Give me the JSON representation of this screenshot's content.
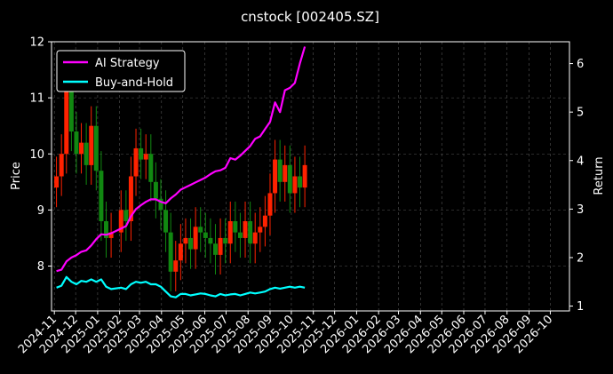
{
  "chart_data": {
    "type": "line",
    "title": "cnstock [002405.SZ]",
    "ylabel_left": "Price",
    "ylabel_right": "Return",
    "ylim_left": [
      7.2,
      12.0
    ],
    "ylim_right": [
      0.9,
      6.45
    ],
    "yticks_left": [
      "8",
      "9",
      "10",
      "11",
      "12"
    ],
    "yticks_right": [
      "1",
      "2",
      "3",
      "4",
      "5",
      "6"
    ],
    "xticks": [
      "2024-11",
      "2024-12",
      "2025-01",
      "2025-02",
      "2025-03",
      "2025-04",
      "2025-05",
      "2025-06",
      "2025-07",
      "2025-08",
      "2025-09",
      "2025-10",
      "2025-11",
      "2025-12",
      "2026-01",
      "2026-02",
      "2026-03",
      "2026-04",
      "2026-05",
      "2026-06",
      "2026-07",
      "2026-08",
      "2026-09",
      "2026-10"
    ],
    "grid": true,
    "legend_position": "top-left",
    "colors": {
      "strategy": "#ff00ff",
      "buyhold": "#00ffff",
      "up": "#ff2200",
      "down": "#118811"
    },
    "series": [
      {
        "name": "AI Strategy",
        "axis": "right",
        "x": [
          "2024-11-04",
          "2024-11-11",
          "2024-11-18",
          "2024-11-25",
          "2024-12-02",
          "2024-12-09",
          "2024-12-16",
          "2024-12-23",
          "2024-12-30",
          "2025-01-06",
          "2025-01-13",
          "2025-01-20",
          "2025-02-03",
          "2025-02-10",
          "2025-02-17",
          "2025-02-24",
          "2025-03-03",
          "2025-03-10",
          "2025-03-17",
          "2025-03-24",
          "2025-03-31",
          "2025-04-07",
          "2025-04-14",
          "2025-04-21",
          "2025-04-28",
          "2025-05-05",
          "2025-05-12",
          "2025-05-19",
          "2025-05-26",
          "2025-06-02",
          "2025-06-09",
          "2025-06-16",
          "2025-06-23",
          "2025-06-30",
          "2025-07-07",
          "2025-07-14",
          "2025-07-21",
          "2025-07-28",
          "2025-08-04",
          "2025-08-11",
          "2025-08-18",
          "2025-08-25",
          "2025-09-01",
          "2025-09-08",
          "2025-09-15",
          "2025-09-22",
          "2025-09-29",
          "2025-10-06",
          "2025-10-13",
          "2025-10-20"
        ],
        "y": [
          1.72,
          1.75,
          1.92,
          2.0,
          2.05,
          2.12,
          2.15,
          2.25,
          2.38,
          2.48,
          2.47,
          2.5,
          2.6,
          2.65,
          2.85,
          3.0,
          3.08,
          3.15,
          3.2,
          3.2,
          3.15,
          3.12,
          3.22,
          3.3,
          3.4,
          3.45,
          3.5,
          3.55,
          3.6,
          3.65,
          3.72,
          3.78,
          3.8,
          3.85,
          4.05,
          4.02,
          4.1,
          4.2,
          4.3,
          4.45,
          4.5,
          4.65,
          4.8,
          5.2,
          5.0,
          5.45,
          5.5,
          5.6,
          6.0,
          6.35
        ]
      },
      {
        "name": "Buy-and-Hold",
        "axis": "right",
        "x": [
          "2024-11-04",
          "2024-11-11",
          "2024-11-18",
          "2024-11-25",
          "2024-12-02",
          "2024-12-09",
          "2024-12-16",
          "2024-12-23",
          "2024-12-30",
          "2025-01-06",
          "2025-01-13",
          "2025-01-20",
          "2025-02-03",
          "2025-02-10",
          "2025-02-17",
          "2025-02-24",
          "2025-03-03",
          "2025-03-10",
          "2025-03-17",
          "2025-03-24",
          "2025-03-31",
          "2025-04-07",
          "2025-04-14",
          "2025-04-21",
          "2025-04-28",
          "2025-05-05",
          "2025-05-12",
          "2025-05-19",
          "2025-05-26",
          "2025-06-02",
          "2025-06-09",
          "2025-06-16",
          "2025-06-23",
          "2025-06-30",
          "2025-07-07",
          "2025-07-14",
          "2025-07-21",
          "2025-07-28",
          "2025-08-04",
          "2025-08-11",
          "2025-08-18",
          "2025-08-25",
          "2025-09-01",
          "2025-09-08",
          "2025-09-15",
          "2025-09-22",
          "2025-09-29",
          "2025-10-06",
          "2025-10-13",
          "2025-10-20"
        ],
        "y": [
          1.38,
          1.42,
          1.6,
          1.5,
          1.45,
          1.52,
          1.5,
          1.55,
          1.5,
          1.55,
          1.4,
          1.35,
          1.38,
          1.35,
          1.45,
          1.5,
          1.48,
          1.5,
          1.45,
          1.45,
          1.4,
          1.3,
          1.2,
          1.18,
          1.25,
          1.25,
          1.22,
          1.24,
          1.26,
          1.25,
          1.22,
          1.2,
          1.25,
          1.22,
          1.24,
          1.25,
          1.22,
          1.25,
          1.28,
          1.26,
          1.28,
          1.3,
          1.35,
          1.38,
          1.36,
          1.38,
          1.4,
          1.38,
          1.4,
          1.38
        ]
      },
      {
        "name": "Price",
        "type": "candlestick",
        "axis": "left",
        "x": [
          "2024-11-04",
          "2024-11-11",
          "2024-11-18",
          "2024-11-25",
          "2024-12-02",
          "2024-12-09",
          "2024-12-16",
          "2024-12-23",
          "2024-12-30",
          "2025-01-06",
          "2025-01-13",
          "2025-01-20",
          "2025-02-03",
          "2025-02-10",
          "2025-02-17",
          "2025-02-24",
          "2025-03-03",
          "2025-03-10",
          "2025-03-17",
          "2025-03-24",
          "2025-03-31",
          "2025-04-07",
          "2025-04-14",
          "2025-04-21",
          "2025-04-28",
          "2025-05-05",
          "2025-05-12",
          "2025-05-19",
          "2025-05-26",
          "2025-06-02",
          "2025-06-09",
          "2025-06-16",
          "2025-06-23",
          "2025-06-30",
          "2025-07-07",
          "2025-07-14",
          "2025-07-21",
          "2025-07-28",
          "2025-08-04",
          "2025-08-11",
          "2025-08-18",
          "2025-08-25",
          "2025-09-01",
          "2025-09-08",
          "2025-09-15",
          "2025-09-22",
          "2025-09-29",
          "2025-10-06",
          "2025-10-13",
          "2025-10-20"
        ],
        "close": [
          9.6,
          10.0,
          11.4,
          10.4,
          10.0,
          10.2,
          9.8,
          10.5,
          9.7,
          8.8,
          8.5,
          8.6,
          9.0,
          8.8,
          9.6,
          10.1,
          9.9,
          10.0,
          9.5,
          9.2,
          9.0,
          8.6,
          7.9,
          8.1,
          8.4,
          8.5,
          8.3,
          8.7,
          8.6,
          8.5,
          8.4,
          8.2,
          8.5,
          8.4,
          8.8,
          8.6,
          8.5,
          8.8,
          8.4,
          8.6,
          8.7,
          8.9,
          9.3,
          9.9,
          9.5,
          9.8,
          9.3,
          9.6,
          9.4,
          9.8
        ]
      }
    ]
  }
}
